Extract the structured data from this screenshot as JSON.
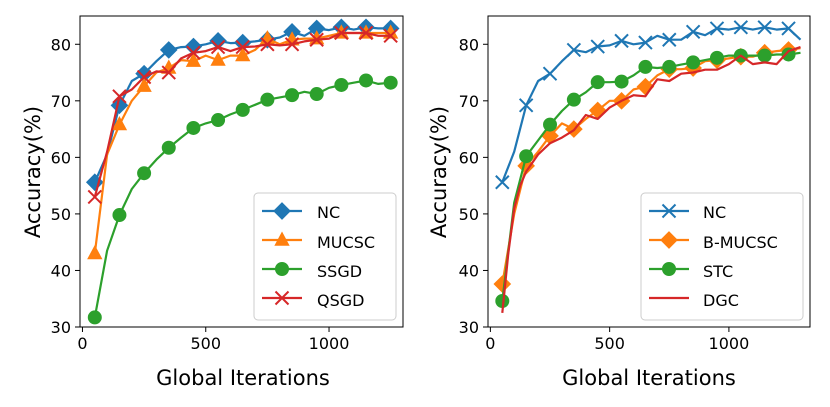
{
  "chart_data": [
    {
      "type": "line",
      "xlabel": "Global Iterations",
      "ylabel": "Accuracy(%)",
      "xlim": [
        -10,
        1300
      ],
      "ylim": [
        30,
        85
      ],
      "xticks": [
        0,
        500,
        1000
      ],
      "yticks": [
        30,
        40,
        50,
        60,
        70,
        80
      ],
      "legend_position": "bottom-right",
      "series": [
        {
          "name": "NC",
          "color": "#1f77b4",
          "marker": "diamond",
          "x": [
            50,
            100,
            150,
            200,
            250,
            300,
            350,
            400,
            450,
            500,
            550,
            600,
            650,
            700,
            750,
            800,
            850,
            900,
            950,
            1000,
            1050,
            1100,
            1150,
            1200,
            1250
          ],
          "y": [
            55.6,
            60.5,
            69.2,
            73.5,
            74.8,
            77.0,
            79.0,
            79.5,
            79.6,
            80.0,
            80.6,
            80.2,
            80.3,
            80.5,
            80.8,
            81.2,
            82.2,
            81.5,
            82.8,
            82.5,
            83.0,
            82.6,
            83.0,
            82.8,
            82.8
          ],
          "marker_x": [
            50,
            150,
            250,
            350,
            450,
            550,
            650,
            750,
            850,
            950,
            1050,
            1150,
            1250
          ],
          "marker_y": [
            55.6,
            69.2,
            74.8,
            79.0,
            79.6,
            80.6,
            80.3,
            80.8,
            82.2,
            82.8,
            83.0,
            83.0,
            82.8
          ]
        },
        {
          "name": "MUCSC",
          "color": "#ff7f0e",
          "marker": "triangle-up",
          "x": [
            50,
            100,
            150,
            200,
            250,
            300,
            350,
            400,
            450,
            500,
            550,
            600,
            650,
            700,
            750,
            800,
            850,
            900,
            950,
            1000,
            1050,
            1100,
            1150,
            1200,
            1250
          ],
          "y": [
            43.0,
            60.5,
            65.8,
            70.0,
            72.6,
            75.0,
            75.8,
            77.2,
            77.0,
            78.0,
            77.2,
            78.0,
            78.0,
            79.0,
            81.0,
            80.0,
            80.8,
            81.0,
            81.0,
            81.5,
            82.0,
            82.0,
            82.0,
            82.0,
            82.0
          ],
          "marker_x": [
            50,
            150,
            250,
            350,
            450,
            550,
            650,
            750,
            850,
            950,
            1050,
            1150,
            1250
          ],
          "marker_y": [
            43.0,
            65.8,
            72.6,
            75.8,
            77.0,
            77.2,
            78.0,
            81.0,
            80.8,
            81.0,
            82.0,
            82.0,
            82.0
          ]
        },
        {
          "name": "SSGD",
          "color": "#2ca02c",
          "marker": "circle",
          "x": [
            50,
            100,
            150,
            200,
            250,
            300,
            350,
            400,
            450,
            500,
            550,
            600,
            650,
            700,
            750,
            800,
            850,
            900,
            950,
            1000,
            1050,
            1100,
            1150,
            1200,
            1250
          ],
          "y": [
            31.7,
            43.5,
            49.8,
            54.4,
            57.2,
            59.6,
            61.7,
            63.5,
            65.2,
            66.0,
            66.6,
            67.6,
            68.4,
            69.3,
            70.2,
            70.6,
            71.0,
            71.6,
            71.2,
            72.3,
            72.8,
            73.2,
            73.6,
            73.0,
            73.2
          ],
          "marker_x": [
            50,
            150,
            250,
            350,
            450,
            550,
            650,
            750,
            850,
            950,
            1050,
            1150,
            1250
          ],
          "marker_y": [
            31.7,
            49.8,
            57.2,
            61.7,
            65.2,
            66.6,
            68.4,
            70.2,
            71.0,
            71.2,
            72.8,
            73.6,
            73.2
          ]
        },
        {
          "name": "QSGD",
          "color": "#d62728",
          "marker": "x",
          "x": [
            50,
            100,
            150,
            200,
            250,
            300,
            350,
            400,
            450,
            500,
            550,
            600,
            650,
            700,
            750,
            800,
            850,
            900,
            950,
            1000,
            1050,
            1100,
            1150,
            1200,
            1250
          ],
          "y": [
            53.0,
            61.0,
            70.8,
            72.0,
            74.2,
            75.2,
            75.0,
            77.5,
            78.5,
            78.8,
            79.5,
            78.8,
            79.5,
            79.6,
            80.0,
            79.8,
            80.0,
            80.5,
            80.8,
            81.0,
            82.0,
            82.0,
            82.0,
            81.5,
            81.5
          ],
          "marker_x": [
            50,
            150,
            250,
            350,
            450,
            550,
            650,
            750,
            850,
            950,
            1050,
            1150,
            1250
          ],
          "marker_y": [
            53.0,
            70.8,
            74.2,
            75.0,
            78.5,
            79.5,
            79.5,
            80.0,
            80.0,
            80.8,
            82.0,
            82.0,
            81.5
          ]
        }
      ]
    },
    {
      "type": "line",
      "xlabel": "Global Iterations",
      "ylabel": "Accuracy(%)",
      "xlim": [
        -10,
        1340
      ],
      "ylim": [
        30,
        85
      ],
      "xticks": [
        0,
        500,
        1000
      ],
      "yticks": [
        30,
        40,
        50,
        60,
        70,
        80
      ],
      "legend_position": "bottom-right",
      "series": [
        {
          "name": "NC",
          "color": "#1f77b4",
          "marker": "x",
          "x": [
            50,
            100,
            150,
            200,
            250,
            300,
            350,
            400,
            450,
            500,
            550,
            600,
            650,
            700,
            750,
            800,
            850,
            900,
            950,
            1000,
            1050,
            1100,
            1150,
            1200,
            1250,
            1300
          ],
          "y": [
            55.6,
            61.0,
            69.2,
            73.5,
            74.8,
            77.0,
            79.0,
            78.6,
            79.6,
            79.8,
            80.6,
            80.0,
            80.3,
            81.5,
            80.8,
            80.8,
            82.2,
            81.6,
            82.8,
            82.6,
            83.0,
            82.6,
            83.0,
            82.6,
            82.8,
            80.8
          ],
          "marker_x": [
            50,
            150,
            250,
            350,
            450,
            550,
            650,
            750,
            850,
            950,
            1050,
            1150,
            1250
          ],
          "marker_y": [
            55.6,
            69.2,
            74.8,
            79.0,
            79.6,
            80.6,
            80.3,
            80.8,
            82.2,
            82.8,
            83.0,
            83.0,
            82.8
          ]
        },
        {
          "name": "B-MUCSC",
          "color": "#ff7f0e",
          "marker": "diamond",
          "x": [
            50,
            100,
            150,
            200,
            250,
            300,
            350,
            400,
            450,
            500,
            550,
            600,
            650,
            700,
            750,
            800,
            850,
            900,
            950,
            1000,
            1050,
            1100,
            1150,
            1200,
            1250,
            1300
          ],
          "y": [
            37.6,
            50.0,
            58.5,
            61.0,
            63.8,
            66.0,
            65.0,
            66.8,
            68.3,
            70.0,
            70.0,
            72.0,
            72.5,
            74.5,
            75.6,
            75.6,
            75.8,
            77.0,
            77.2,
            77.5,
            77.8,
            77.8,
            78.5,
            78.8,
            79.0,
            79.3
          ],
          "marker_x": [
            50,
            150,
            250,
            350,
            450,
            550,
            650,
            750,
            850,
            950,
            1050,
            1150,
            1250
          ],
          "marker_y": [
            37.6,
            58.5,
            63.8,
            65.0,
            68.3,
            70.0,
            72.5,
            75.6,
            75.8,
            77.2,
            77.8,
            78.5,
            79.0
          ]
        },
        {
          "name": "STC",
          "color": "#2ca02c",
          "marker": "circle",
          "x": [
            50,
            100,
            150,
            200,
            250,
            300,
            350,
            400,
            450,
            500,
            550,
            600,
            650,
            700,
            750,
            800,
            850,
            900,
            950,
            1000,
            1050,
            1100,
            1150,
            1200,
            1250,
            1300
          ],
          "y": [
            34.6,
            52.0,
            60.2,
            63.0,
            65.8,
            68.2,
            70.2,
            71.5,
            73.3,
            73.3,
            73.4,
            74.5,
            76.0,
            75.8,
            76.0,
            76.4,
            76.8,
            77.2,
            77.6,
            78.0,
            78.0,
            78.0,
            78.0,
            78.2,
            78.2,
            78.5
          ],
          "marker_x": [
            50,
            150,
            250,
            350,
            450,
            550,
            650,
            750,
            850,
            950,
            1050,
            1150,
            1250
          ],
          "marker_y": [
            34.6,
            60.2,
            65.8,
            70.2,
            73.3,
            73.4,
            76.0,
            76.0,
            76.8,
            77.6,
            78.0,
            78.0,
            78.2
          ]
        },
        {
          "name": "DGC",
          "color": "#d62728",
          "marker": "none",
          "x": [
            50,
            75,
            100,
            125,
            150,
            200,
            250,
            300,
            350,
            400,
            450,
            500,
            550,
            600,
            650,
            700,
            750,
            800,
            850,
            900,
            950,
            1000,
            1050,
            1100,
            1150,
            1200,
            1250,
            1300
          ],
          "y": [
            32.5,
            43.0,
            51.0,
            55.0,
            57.5,
            60.5,
            62.5,
            63.5,
            64.8,
            67.5,
            66.8,
            68.8,
            70.0,
            71.0,
            70.8,
            73.8,
            73.5,
            74.8,
            75.0,
            75.5,
            75.5,
            76.5,
            78.0,
            76.5,
            76.8,
            76.5,
            78.8,
            79.5
          ]
        }
      ]
    }
  ]
}
